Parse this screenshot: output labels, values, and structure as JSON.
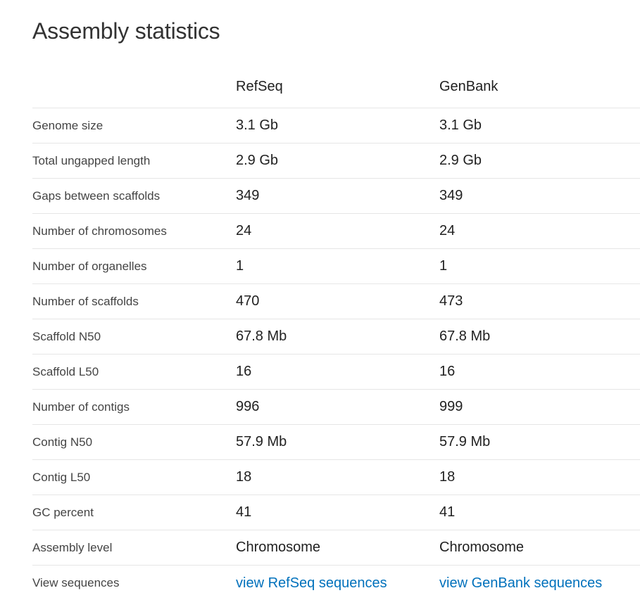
{
  "title": "Assembly statistics",
  "columns": [
    "RefSeq",
    "GenBank"
  ],
  "rows": [
    {
      "label": "Genome size",
      "refseq": "3.1 Gb",
      "genbank": "3.1 Gb"
    },
    {
      "label": "Total ungapped length",
      "refseq": "2.9 Gb",
      "genbank": "2.9 Gb"
    },
    {
      "label": "Gaps between scaffolds",
      "refseq": "349",
      "genbank": "349"
    },
    {
      "label": "Number of chromosomes",
      "refseq": "24",
      "genbank": "24"
    },
    {
      "label": "Number of organelles",
      "refseq": "1",
      "genbank": "1"
    },
    {
      "label": "Number of scaffolds",
      "refseq": "470",
      "genbank": "473"
    },
    {
      "label": "Scaffold N50",
      "refseq": "67.8 Mb",
      "genbank": "67.8 Mb"
    },
    {
      "label": "Scaffold L50",
      "refseq": "16",
      "genbank": "16"
    },
    {
      "label": "Number of contigs",
      "refseq": "996",
      "genbank": "999"
    },
    {
      "label": "Contig N50",
      "refseq": "57.9 Mb",
      "genbank": "57.9 Mb"
    },
    {
      "label": "Contig L50",
      "refseq": "18",
      "genbank": "18"
    },
    {
      "label": "GC percent",
      "refseq": "41",
      "genbank": "41"
    },
    {
      "label": "Assembly level",
      "refseq": "Chromosome",
      "genbank": "Chromosome"
    }
  ],
  "view_sequences": {
    "label": "View sequences",
    "refseq_link": "view RefSeq sequences",
    "genbank_link": "view GenBank sequences"
  },
  "colors": {
    "link": "#0071bc",
    "text": "#212121",
    "label": "#444444",
    "divider": "#e6e6e6"
  }
}
